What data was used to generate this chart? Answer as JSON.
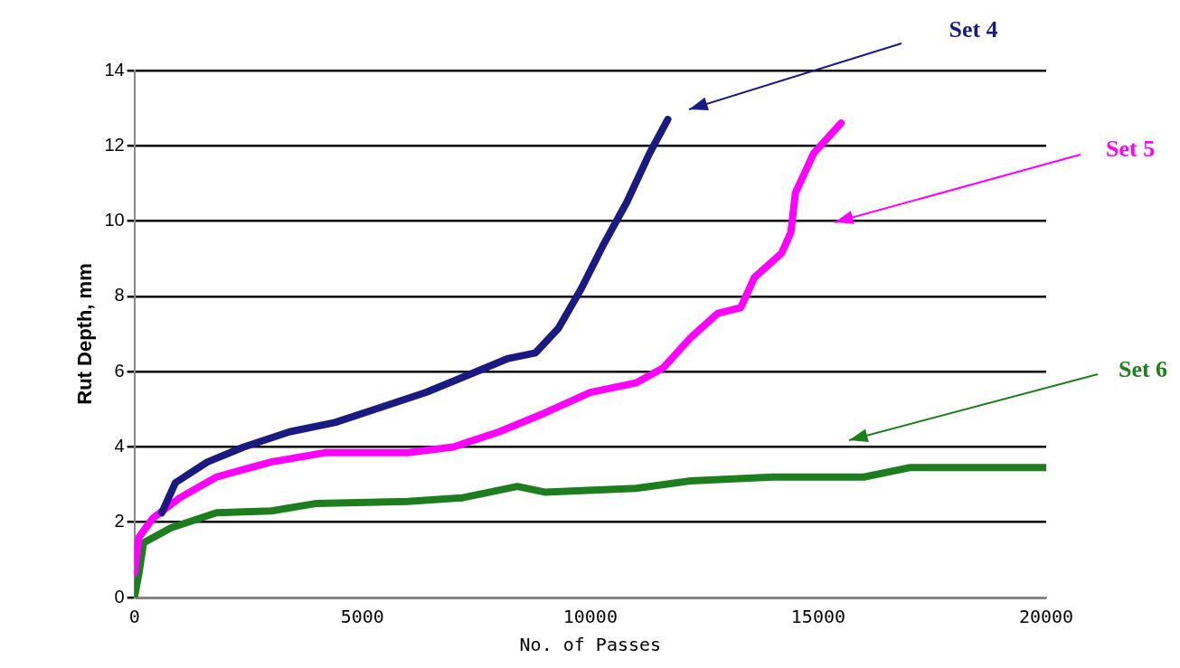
{
  "chart_data": {
    "type": "line",
    "xlabel": "No. of Passes",
    "ylabel": "Rut Depth, mm",
    "xlim": [
      0,
      20000
    ],
    "xticks": [
      0,
      5000,
      10000,
      15000,
      20000
    ],
    "ylim": [
      0,
      14
    ],
    "yticks": [
      0,
      2,
      4,
      6,
      8,
      10,
      12,
      14
    ],
    "grid": "y",
    "legend": false,
    "marker": "none",
    "line_style": "solid",
    "series": [
      {
        "name": "Set 4",
        "color": "#1a1a80",
        "x": [
          600,
          900,
          1600,
          2400,
          3400,
          4400,
          5400,
          6400,
          7400,
          8200,
          8800,
          9300,
          9800,
          10300,
          10800,
          11300,
          11700
        ],
        "values": [
          2.25,
          3.05,
          3.6,
          4.0,
          4.4,
          4.65,
          5.05,
          5.45,
          5.95,
          6.35,
          6.5,
          7.15,
          8.2,
          9.4,
          10.5,
          11.8,
          12.7
        ]
      },
      {
        "name": "Set 5",
        "color": "#ff00ff",
        "x": [
          0,
          100,
          400,
          1000,
          1800,
          3000,
          4200,
          6000,
          7000,
          8000,
          9000,
          10000,
          11000,
          11600,
          12200,
          12800,
          13300,
          13600,
          14200,
          14400,
          14500,
          14900,
          15500
        ],
        "values": [
          0.65,
          1.6,
          2.1,
          2.65,
          3.2,
          3.6,
          3.85,
          3.85,
          4.0,
          4.4,
          4.9,
          5.45,
          5.7,
          6.1,
          6.9,
          7.55,
          7.7,
          8.5,
          9.15,
          9.7,
          10.75,
          11.8,
          12.6
        ]
      },
      {
        "name": "Set 6",
        "color": "#1e7d1e",
        "x": [
          0,
          100,
          200,
          800,
          1800,
          3000,
          4000,
          6000,
          7200,
          8400,
          9000,
          11000,
          12200,
          14000,
          16000,
          17000,
          20000
        ],
        "values": [
          0,
          0.65,
          1.45,
          1.85,
          2.25,
          2.3,
          2.5,
          2.55,
          2.65,
          2.95,
          2.8,
          2.9,
          3.1,
          3.2,
          3.2,
          3.45,
          3.45
        ]
      }
    ]
  }
}
